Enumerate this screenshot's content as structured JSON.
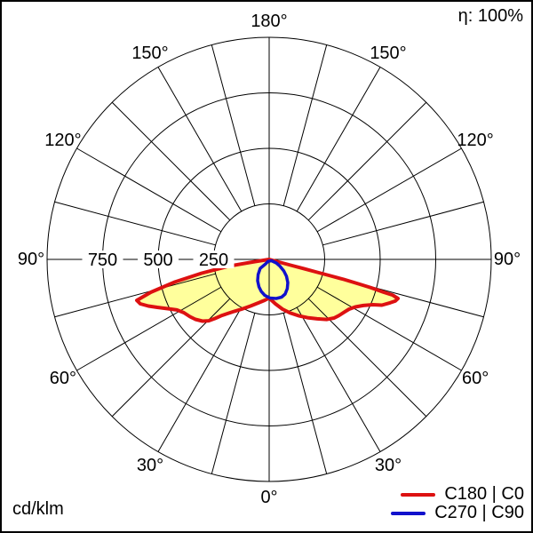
{
  "frame": {
    "eta_label": "η: 100%",
    "unit_label": "cd/klm"
  },
  "legend": [
    {
      "label": "C180 | C0",
      "color": "#dd1111"
    },
    {
      "label": "C270 | C90",
      "color": "#1111cc"
    }
  ],
  "chart_data": {
    "type": "polar",
    "subtype": "photometric-intensity-distribution",
    "title": "",
    "angle_unit": "degrees from nadir (0 = straight down, 180 = up)",
    "value_unit": "cd/klm",
    "r_max": 1000,
    "ring_values": [
      250,
      500,
      750,
      1000
    ],
    "spoke_step_deg": 15,
    "grid_color": "#000000",
    "background_color": "#ffffff",
    "angle_labels": [
      {
        "gamma": 0,
        "text": "0°"
      },
      {
        "gamma": 30,
        "text": "30°"
      },
      {
        "gamma": 60,
        "text": "60°"
      },
      {
        "gamma": 90,
        "text": "90°"
      },
      {
        "gamma": 120,
        "text": "120°"
      },
      {
        "gamma": 150,
        "text": "150°"
      },
      {
        "gamma": 180,
        "text": "180°"
      }
    ],
    "radial_ticks": [
      {
        "value": 250,
        "text": "250"
      },
      {
        "value": 500,
        "text": "500"
      },
      {
        "value": 750,
        "text": "750"
      }
    ],
    "series": [
      {
        "name": "C180 | C0",
        "color": "#dd1111",
        "fill": "#ffff9c",
        "width": 4,
        "closed": true,
        "note": "signed gamma: negative = C180 (left half), positive = C0 (right half); value in cd/klm",
        "points": [
          [
            -85,
            0
          ],
          [
            -81,
            65
          ],
          [
            -80.5,
            186
          ],
          [
            -78.5,
            310
          ],
          [
            -76.5,
            436
          ],
          [
            -74.5,
            552
          ],
          [
            -72.8,
            624
          ],
          [
            -71,
            614
          ],
          [
            -68.9,
            583
          ],
          [
            -66.8,
            548
          ],
          [
            -63.8,
            504
          ],
          [
            -61.3,
            474
          ],
          [
            -58,
            453
          ],
          [
            -54.1,
            440
          ],
          [
            -50.9,
            428
          ],
          [
            -47.2,
            409
          ],
          [
            -44.6,
            388
          ],
          [
            -42.5,
            361
          ],
          [
            -40.4,
            333
          ],
          [
            -37.6,
            308
          ],
          [
            -33.7,
            281
          ],
          [
            -29,
            256
          ],
          [
            -21.8,
            226
          ],
          [
            -12.8,
            199
          ],
          [
            -6.2,
            185
          ],
          [
            0,
            174
          ],
          [
            8,
            202
          ],
          [
            15,
            232
          ],
          [
            21.6,
            260
          ],
          [
            27.5,
            286
          ],
          [
            33.3,
            314
          ],
          [
            38.9,
            344
          ],
          [
            43.9,
            375
          ],
          [
            47.9,
            394
          ],
          [
            51.4,
            404
          ],
          [
            55.2,
            414
          ],
          [
            58.1,
            424
          ],
          [
            61.1,
            443
          ],
          [
            63.9,
            472
          ],
          [
            66.4,
            510
          ],
          [
            67.9,
            548
          ],
          [
            70.2,
            578
          ],
          [
            71.7,
            598
          ],
          [
            73.1,
            606
          ],
          [
            73.9,
            578
          ],
          [
            74,
            537
          ],
          [
            74.5,
            473
          ],
          [
            74.7,
            410
          ],
          [
            75,
            348
          ],
          [
            75,
            286
          ],
          [
            75,
            224
          ],
          [
            75.1,
            162
          ],
          [
            74.9,
            100
          ],
          [
            74.7,
            46
          ],
          [
            75,
            0
          ]
        ]
      },
      {
        "name": "C270 | C90",
        "color": "#1111cc",
        "fill": "none",
        "width": 3.5,
        "closed": true,
        "note": "signed gamma: negative = C270 (left half), positive = C90 (right half); value in cd/klm",
        "points": [
          [
            -30,
            10
          ],
          [
            -38.7,
            26
          ],
          [
            -45,
            57
          ],
          [
            -36.3,
            84
          ],
          [
            -28.4,
            109
          ],
          [
            -20.4,
            132
          ],
          [
            -14,
            148
          ],
          [
            -7,
            163
          ],
          [
            1.3,
            174
          ],
          [
            10.3,
            179
          ],
          [
            18.2,
            179
          ],
          [
            24.8,
            172
          ],
          [
            31.8,
            155
          ],
          [
            38.9,
            134
          ],
          [
            45.7,
            109
          ],
          [
            51.8,
            84
          ],
          [
            58,
            57
          ],
          [
            63.4,
            36
          ],
          [
            60,
            12
          ]
        ]
      }
    ]
  }
}
